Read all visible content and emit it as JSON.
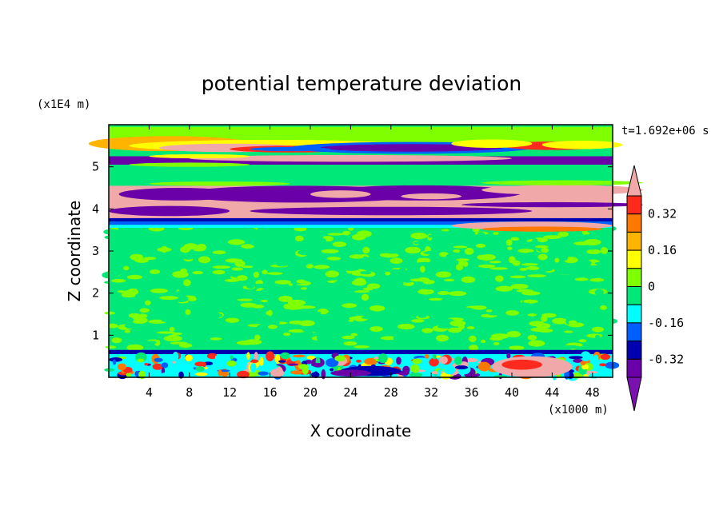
{
  "chart_data": {
    "type": "heatmap",
    "title": "potential temperature deviation",
    "xlabel": "X coordinate",
    "ylabel": "Z coordinate",
    "x_unit": "(x1000 m)",
    "y_unit": "(x1E4 m)",
    "time_label": "t=1.692e+06 s",
    "xlim": [
      0,
      50
    ],
    "ylim": [
      0,
      6
    ],
    "xticks": [
      "4",
      "8",
      "12",
      "16",
      "20",
      "24",
      "28",
      "32",
      "36",
      "40",
      "44",
      "48"
    ],
    "yticks": [
      "1",
      "2",
      "3",
      "4",
      "5"
    ],
    "colorbar": {
      "levels": [
        -0.4,
        -0.32,
        -0.24,
        -0.16,
        -0.08,
        0,
        0.08,
        0.16,
        0.24,
        0.32,
        0.4
      ],
      "labels": [
        "0.32",
        "0.16",
        "0",
        "-0.16",
        "-0.32"
      ],
      "colors_top_to_bottom": [
        "#f0a8a8",
        "#ff2a1e",
        "#ff7800",
        "#ffb400",
        "#ffff00",
        "#80ff00",
        "#00e878",
        "#00ffff",
        "#0060ff",
        "#0000b0",
        "#6a00a8",
        "#7a10b0"
      ]
    },
    "regions": [
      {
        "zone": "lower boundary layer 0-0.65",
        "pattern": "mixed warm/cold eddies"
      },
      {
        "zone": "0.65-3.6",
        "pattern": "near zero, green/light green noise"
      },
      {
        "zone": "3.6-3.75",
        "pattern": "cold bands blue/cyan"
      },
      {
        "zone": "3.75-4.6",
        "pattern": "alternating pink (warm) and purple (cold) layers"
      },
      {
        "zone": "4.6-5.1",
        "pattern": "near zero"
      },
      {
        "zone": "5.1-5.9",
        "pattern": "purple, pink, orange/yellow upper layers"
      }
    ]
  }
}
